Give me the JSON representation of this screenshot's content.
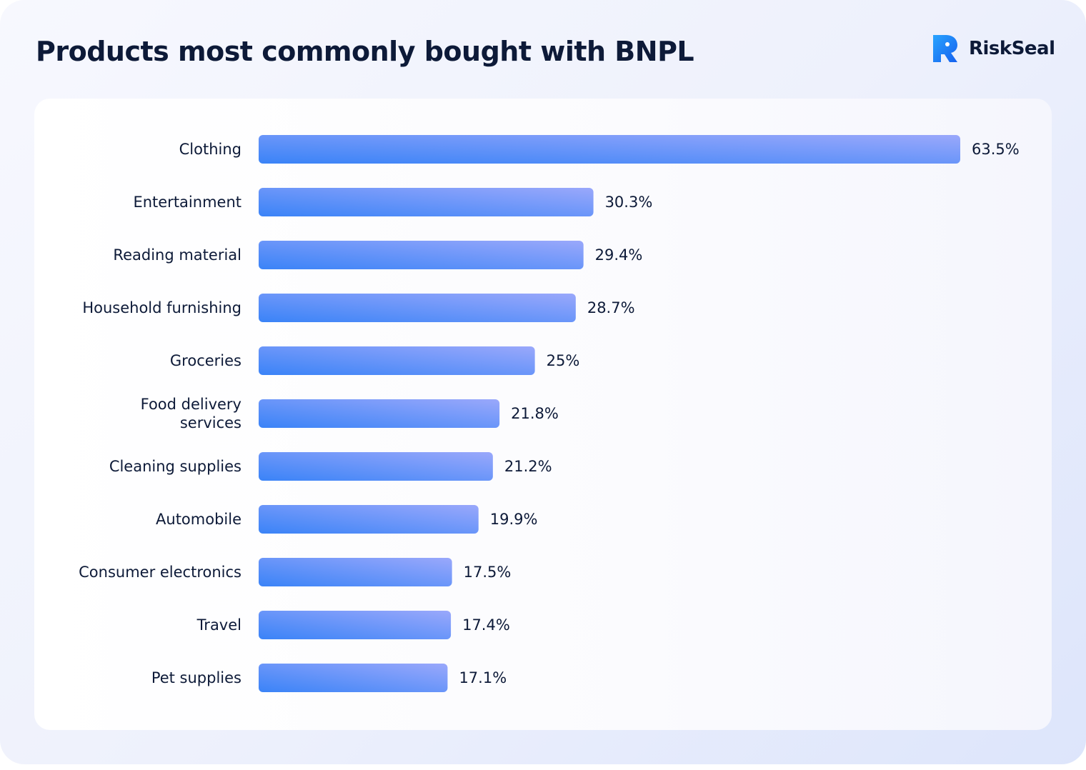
{
  "header": {
    "title": "Products most commonly bought with BNPL"
  },
  "brand": {
    "name": "RiskSeal",
    "logo_icon": "riskseal-seal-icon",
    "accent_color": "#1f86f5"
  },
  "chart_data": {
    "type": "bar",
    "orientation": "horizontal",
    "title": "Products most commonly bought with BNPL",
    "categories": [
      [
        "Clothing"
      ],
      [
        "Entertainment"
      ],
      [
        "Reading material"
      ],
      [
        "Household furnishing"
      ],
      [
        "Groceries"
      ],
      [
        "Food delivery",
        "services"
      ],
      [
        "Cleaning supplies"
      ],
      [
        "Automobile"
      ],
      [
        "Consumer electronics"
      ],
      [
        "Travel"
      ],
      [
        "Pet supplies"
      ]
    ],
    "values": [
      63.5,
      30.3,
      29.4,
      28.7,
      25,
      21.8,
      21.2,
      19.9,
      17.5,
      17.4,
      17.1
    ],
    "value_labels": [
      "63.5%",
      "30.3%",
      "29.4%",
      "28.7%",
      "25%",
      "21.8%",
      "21.2%",
      "19.9%",
      "17.5%",
      "17.4%",
      "17.1%"
    ],
    "xlim": [
      0,
      63.5
    ],
    "grid": false,
    "legend": "none",
    "bar_gradient": [
      "#3a83f7",
      "#9aa8fb"
    ]
  }
}
